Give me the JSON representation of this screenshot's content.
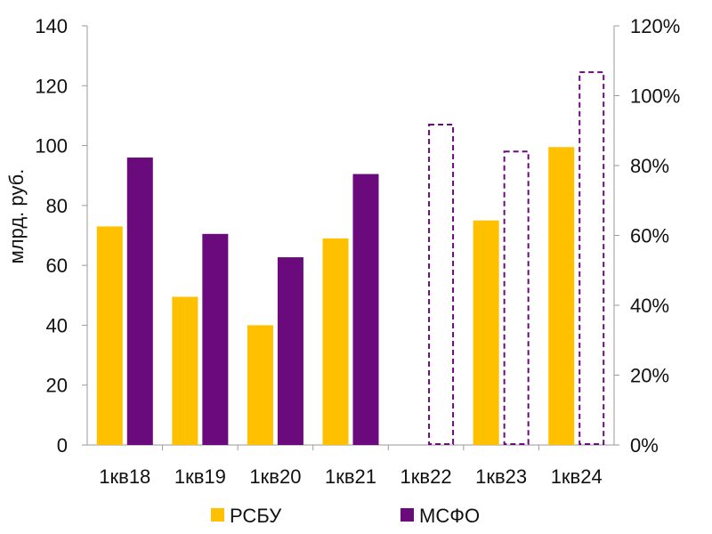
{
  "chart_data": {
    "type": "bar",
    "title": "",
    "xlabel": "",
    "ylabel": "млрд. руб.",
    "ylim": [
      0,
      140
    ],
    "yticks": [
      "0",
      "20",
      "40",
      "60",
      "80",
      "100",
      "120",
      "140"
    ],
    "y2lim": [
      0,
      120
    ],
    "y2ticks": [
      "0%",
      "20%",
      "40%",
      "60%",
      "80%",
      "100%",
      "120%"
    ],
    "categories": [
      "1кв18",
      "1кв19",
      "1кв20",
      "1кв21",
      "1кв22",
      "1кв23",
      "1кв24"
    ],
    "series": [
      {
        "name": "РСБУ",
        "color": "#FFC000",
        "values": [
          73,
          49.5,
          40,
          69,
          null,
          75,
          99.5
        ]
      },
      {
        "name": "МСФО",
        "color": "#6B0A7D",
        "values": [
          96,
          70.5,
          62.7,
          90.5,
          null,
          null,
          null
        ],
        "outline_values": [
          null,
          null,
          null,
          null,
          107,
          98,
          124.5
        ],
        "outline_style": "dashed"
      }
    ],
    "legend": [
      "РСБУ",
      "МСФО"
    ],
    "legend_position": "bottom",
    "grid": false
  }
}
